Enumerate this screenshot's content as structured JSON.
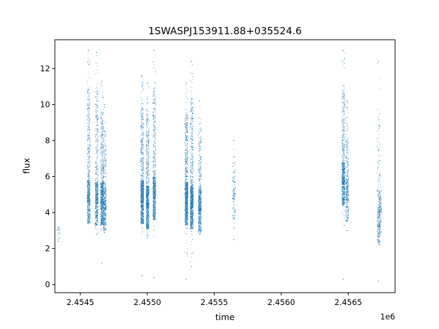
{
  "chart_data": {
    "type": "scatter",
    "title": "1SWASPJ153911.88+035524.6",
    "xlabel": "time",
    "ylabel": "flux",
    "x_offset_label": "1e6",
    "xlim": [
      2454310,
      2456850
    ],
    "ylim": [
      -0.45,
      13.6
    ],
    "x_ticks": [
      {
        "value": 2454500,
        "label": "2.4545"
      },
      {
        "value": 2455000,
        "label": "2.4550"
      },
      {
        "value": 2455500,
        "label": "2.4555"
      },
      {
        "value": 2456000,
        "label": "2.4560"
      },
      {
        "value": 2456500,
        "label": "2.4565"
      }
    ],
    "y_ticks": [
      {
        "value": 0,
        "label": "0"
      },
      {
        "value": 2,
        "label": "2"
      },
      {
        "value": 4,
        "label": "4"
      },
      {
        "value": 6,
        "label": "6"
      },
      {
        "value": 8,
        "label": "8"
      },
      {
        "value": 10,
        "label": "10"
      },
      {
        "value": 12,
        "label": "12"
      }
    ],
    "grid": false,
    "legend": "none",
    "marker_color": "#1f77b4",
    "outlier_color": "#ff7f0e",
    "series": [
      {
        "points": [
          {
            "x": 2454337,
            "y": 3.2
          },
          {
            "x": 2454337,
            "y": 2.4
          },
          {
            "x": 2454560,
            "y": 13.0
          },
          {
            "x": 2454560,
            "y": 4.2
          },
          {
            "x": 2454620,
            "y": 12.9
          },
          {
            "x": 2454620,
            "y": 2.8
          },
          {
            "x": 2454660,
            "y": 11.3
          },
          {
            "x": 2454660,
            "y": 1.2
          },
          {
            "x": 2454680,
            "y": 10.0
          },
          {
            "x": 2454680,
            "y": 2.9
          },
          {
            "x": 2454960,
            "y": 11.6
          },
          {
            "x": 2454960,
            "y": 0.5
          },
          {
            "x": 2455000,
            "y": 11.2
          },
          {
            "x": 2455000,
            "y": 2.6
          },
          {
            "x": 2455050,
            "y": 13.0
          },
          {
            "x": 2455050,
            "y": 0.4
          },
          {
            "x": 2455290,
            "y": 11.2
          },
          {
            "x": 2455290,
            "y": 0.3
          },
          {
            "x": 2455330,
            "y": 12.4
          },
          {
            "x": 2455330,
            "y": 1.0
          },
          {
            "x": 2455390,
            "y": 10.2
          },
          {
            "x": 2455390,
            "y": 2.8
          },
          {
            "x": 2455645,
            "y": 8.0
          },
          {
            "x": 2455645,
            "y": 2.5
          },
          {
            "x": 2456462,
            "y": 13.0
          },
          {
            "x": 2456462,
            "y": 0.3
          },
          {
            "x": 2456490,
            "y": 10.2
          },
          {
            "x": 2456490,
            "y": 3.0
          },
          {
            "x": 2456725,
            "y": 12.4
          },
          {
            "x": 2456725,
            "y": 0.2
          },
          {
            "x": 2456735,
            "y": 6.1
          },
          {
            "x": 2456735,
            "y": 2.2
          }
        ],
        "clusters": [
          {
            "x": 2454337,
            "y_min": 2.4,
            "y_max": 3.2,
            "y_center": 2.8,
            "n": 20
          },
          {
            "x": 2454560,
            "y_min": 3.3,
            "y_max": 13.0,
            "y_center": 4.6,
            "n": 650
          },
          {
            "x": 2454620,
            "y_min": 2.8,
            "y_max": 12.9,
            "y_center": 4.5,
            "n": 600
          },
          {
            "x": 2454660,
            "y_min": 2.8,
            "y_max": 11.3,
            "y_center": 4.5,
            "n": 700
          },
          {
            "x": 2454680,
            "y_min": 2.9,
            "y_max": 10.0,
            "y_center": 4.2,
            "n": 450
          },
          {
            "x": 2454960,
            "y_min": 2.7,
            "y_max": 11.6,
            "y_center": 4.6,
            "n": 900
          },
          {
            "x": 2455000,
            "y_min": 2.6,
            "y_max": 11.2,
            "y_center": 4.3,
            "n": 800
          },
          {
            "x": 2455050,
            "y_min": 2.5,
            "y_max": 13.0,
            "y_center": 4.8,
            "n": 700
          },
          {
            "x": 2455290,
            "y_min": 1.5,
            "y_max": 11.2,
            "y_center": 4.5,
            "n": 950
          },
          {
            "x": 2455330,
            "y_min": 1.0,
            "y_max": 12.4,
            "y_center": 4.3,
            "n": 900
          },
          {
            "x": 2455390,
            "y_min": 2.8,
            "y_max": 10.2,
            "y_center": 4.1,
            "n": 600
          },
          {
            "x": 2455645,
            "y_min": 2.5,
            "y_max": 8.0,
            "y_center": 4.8,
            "n": 130
          },
          {
            "x": 2456462,
            "y_min": 3.2,
            "y_max": 13.0,
            "y_center": 5.6,
            "n": 700
          },
          {
            "x": 2456490,
            "y_min": 3.0,
            "y_max": 10.2,
            "y_center": 4.7,
            "n": 350
          },
          {
            "x": 2456725,
            "y_min": 2.2,
            "y_max": 12.4,
            "y_center": 3.2,
            "n": 220
          },
          {
            "x": 2456735,
            "y_min": 2.2,
            "y_max": 6.1,
            "y_center": 4.0,
            "n": 160
          }
        ]
      }
    ]
  }
}
